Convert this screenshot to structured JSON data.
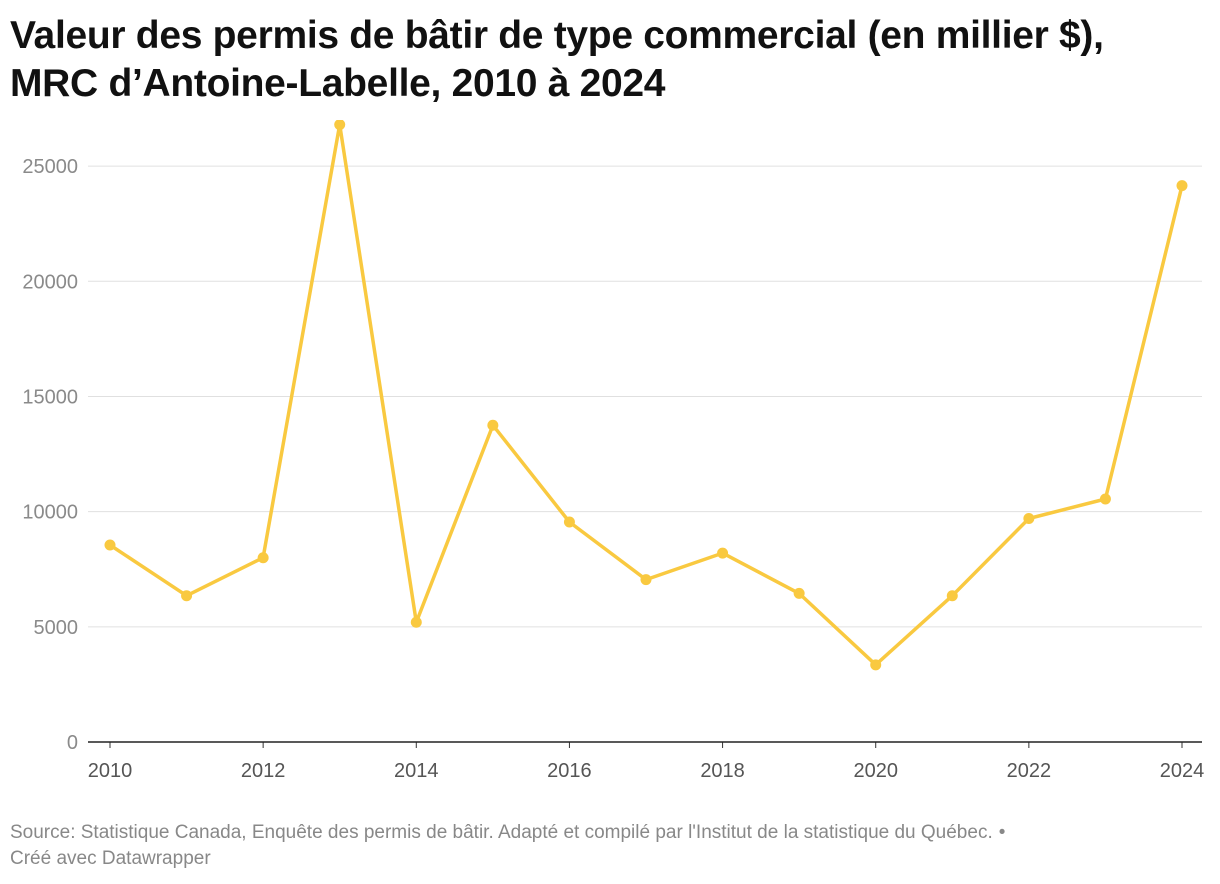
{
  "chart_data": {
    "type": "line",
    "title_line1": "Valeur des permis de bâtir de type commercial (en millier $),",
    "title_line2": "MRC d’Antoine-Labelle, 2010 à 2024",
    "x": [
      2010,
      2011,
      2012,
      2013,
      2014,
      2015,
      2016,
      2017,
      2018,
      2019,
      2020,
      2021,
      2022,
      2023,
      2024
    ],
    "series": [
      {
        "values": [
          8550,
          6350,
          8000,
          26800,
          5200,
          13750,
          9550,
          7050,
          8200,
          6450,
          3350,
          6350,
          9700,
          10550,
          24150
        ],
        "color": "#f9c940"
      }
    ],
    "ylim": [
      0,
      27000
    ],
    "yticks": [
      "0",
      "5000",
      "10000",
      "15000",
      "20000",
      "25000"
    ],
    "xticks": [
      "2010",
      "2012",
      "2014",
      "2016",
      "2018",
      "2020",
      "2022",
      "2024"
    ],
    "grid": true
  },
  "footer": {
    "source": "Source: Statistique Canada, Enquête des permis de bâtir. Adapté et compilé par l'Institut de la statistique du Québec.",
    "separator": "•",
    "credit": "Créé avec Datawrapper"
  }
}
